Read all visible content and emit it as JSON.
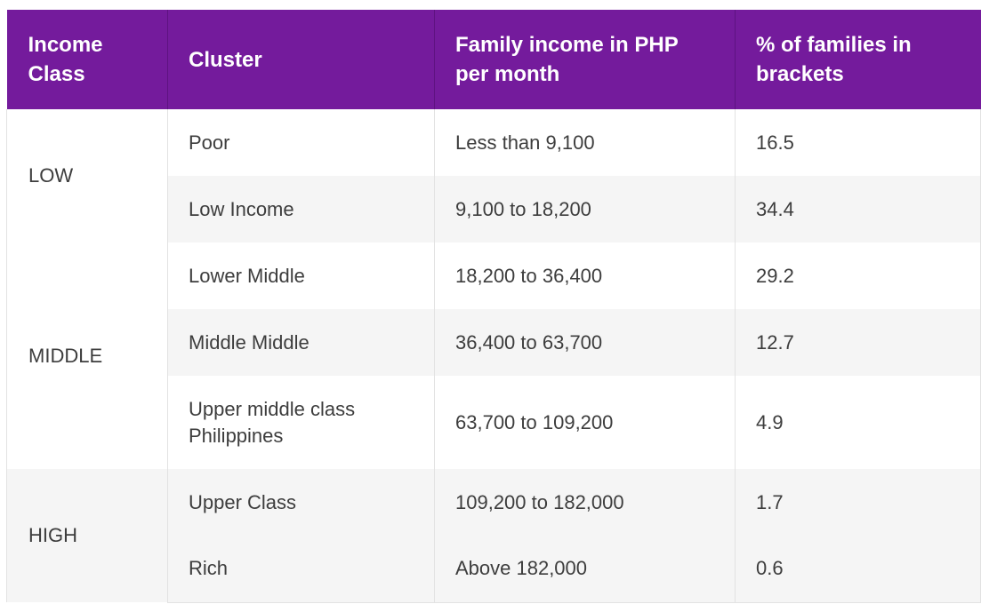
{
  "table": {
    "headers": [
      "Income Class",
      "Cluster",
      "Family income in PHP per month",
      "% of families in brackets"
    ],
    "groups": [
      {
        "income_class": "LOW",
        "rows": [
          {
            "cluster": "Poor",
            "income": "Less than 9,100",
            "percent": "16.5"
          },
          {
            "cluster": "Low Income",
            "income": "9,100 to 18,200",
            "percent": "34.4"
          }
        ]
      },
      {
        "income_class": "MIDDLE",
        "rows": [
          {
            "cluster": "Lower Middle",
            "income": "18,200 to 36,400",
            "percent": "29.2"
          },
          {
            "cluster": "Middle Middle",
            "income": "36,400 to 63,700",
            "percent": "12.7"
          },
          {
            "cluster": "Upper middle class Philippines",
            "income": "63,700 to 109,200",
            "percent": "4.9"
          }
        ]
      },
      {
        "income_class": "HIGH",
        "rows": [
          {
            "cluster": "Upper Class",
            "income": "109,200 to 182,000",
            "percent": "1.7"
          },
          {
            "cluster": "Rich",
            "income": "Above 182,000",
            "percent": "0.6"
          }
        ]
      }
    ]
  },
  "colors": {
    "header_bg": "#741b9c",
    "header_text": "#ffffff",
    "stripe_bg": "#f5f5f5",
    "body_text": "#3d3d3d"
  }
}
